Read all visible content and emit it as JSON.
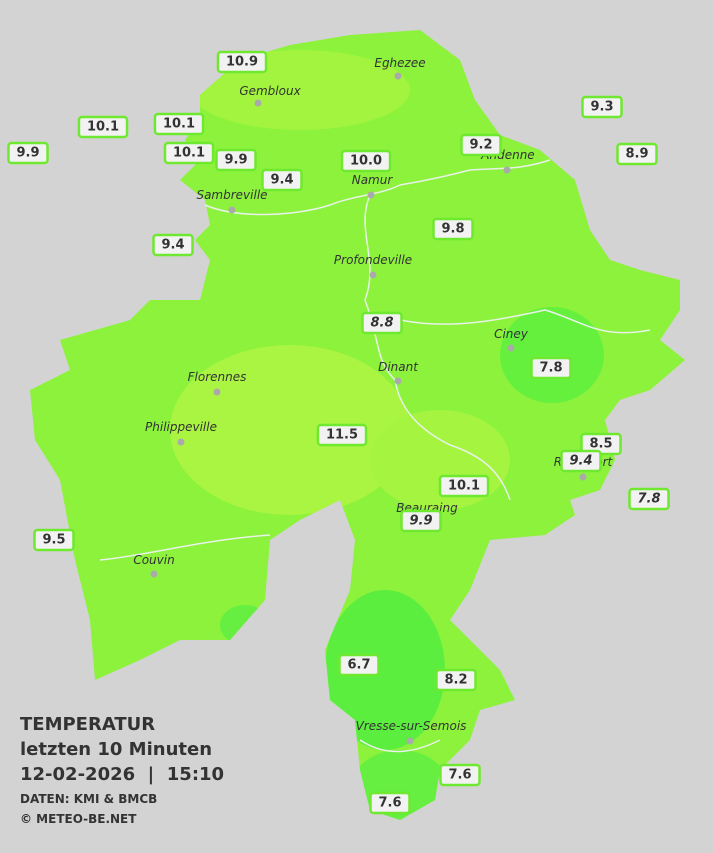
{
  "map": {
    "cities": [
      "Eghezee",
      "Gembloux",
      "Andenne",
      "Namur",
      "Sambreville",
      "Profondeville",
      "Ciney",
      "Dinant",
      "Florennes",
      "Philippeville",
      "Rochefort",
      "Beauraing",
      "Couvin",
      "Vresse-sur-Semois"
    ],
    "stations": [
      "10.9",
      "10.1",
      "10.1",
      "10.1",
      "9.9",
      "9.9",
      "9.4",
      "10.0",
      "9.2",
      "9.3",
      "8.9",
      "9.8",
      "9.4",
      "8.8",
      "7.8",
      "11.5",
      "8.5",
      "9.4",
      "7.8",
      "10.1",
      "9.9",
      "9.5",
      "6.7",
      "8.2",
      "7.6",
      "7.6"
    ],
    "info": {
      "title": "TEMPERATUR",
      "period": "letzten 10 Minuten",
      "datetime": "12-02-2026  |  15:10",
      "source": "DATEN: KMI & BMCB",
      "copyright": "© METEO-BE.NET"
    }
  }
}
